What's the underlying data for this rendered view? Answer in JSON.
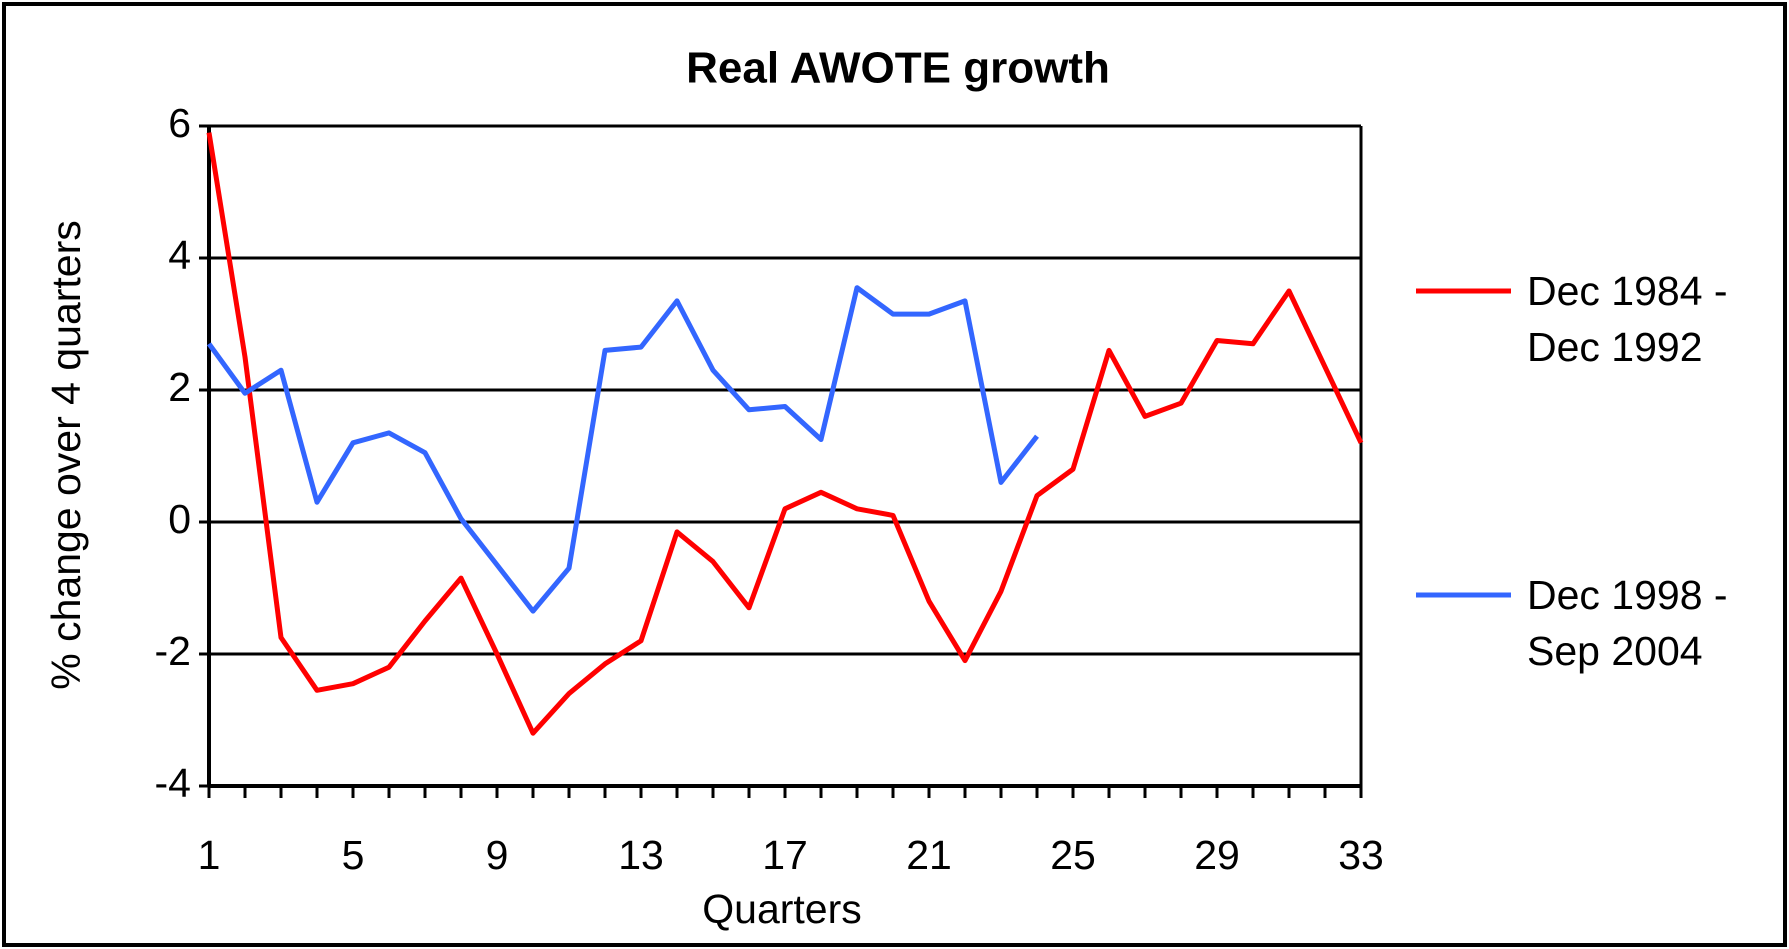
{
  "chart_data": {
    "type": "line",
    "title": "Real AWOTE growth",
    "xlabel": "Quarters",
    "ylabel": "% change over 4 quarters",
    "x": [
      1,
      2,
      3,
      4,
      5,
      6,
      7,
      8,
      9,
      10,
      11,
      12,
      13,
      14,
      15,
      16,
      17,
      18,
      19,
      20,
      21,
      22,
      23,
      24,
      25,
      26,
      27,
      28,
      29,
      30,
      31,
      32,
      33
    ],
    "series": [
      {
        "name": "Dec 1984 - Dec 1992",
        "color": "#ff0000",
        "values": [
          5.9,
          2.5,
          -1.75,
          -2.55,
          -2.45,
          -2.2,
          -1.5,
          -0.85,
          -2.0,
          -3.2,
          -2.6,
          -2.15,
          -1.8,
          -0.15,
          -0.6,
          -1.3,
          0.2,
          0.45,
          0.2,
          0.1,
          -1.2,
          -2.1,
          -1.05,
          0.4,
          0.8,
          2.6,
          1.6,
          1.8,
          2.75,
          2.7,
          3.5,
          2.35,
          1.2
        ]
      },
      {
        "name": "Dec 1998 - Sep 2004",
        "color": "#3366ff",
        "values": [
          2.7,
          1.95,
          2.3,
          0.3,
          1.2,
          1.35,
          1.05,
          0.05,
          -0.65,
          -1.35,
          -0.7,
          2.6,
          2.65,
          3.35,
          2.3,
          1.7,
          1.75,
          1.25,
          3.55,
          3.15,
          3.15,
          3.35,
          0.6,
          1.3,
          null,
          null,
          null,
          null,
          null,
          null,
          null,
          null,
          null
        ]
      }
    ],
    "xlim": [
      1,
      33
    ],
    "xticks": [
      1,
      5,
      9,
      13,
      17,
      21,
      25,
      29,
      33
    ],
    "ylim": [
      -4,
      6
    ],
    "yticks": [
      -4,
      -2,
      0,
      2,
      4,
      6
    ],
    "grid": true,
    "legend": "right"
  }
}
